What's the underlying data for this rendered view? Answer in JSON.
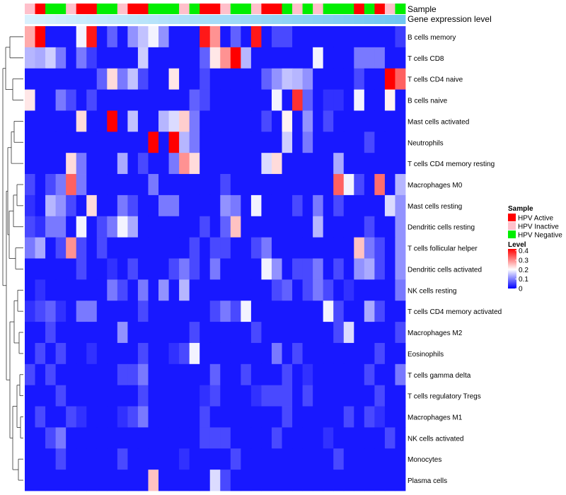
{
  "chart_data": {
    "type": "heatmap",
    "annotation_labels": {
      "sample": "Sample",
      "gene": "Gene expression level"
    },
    "rows": [
      "B cells memory",
      "T cells CD8",
      "T cells CD4 naive",
      "B cells naive",
      "Mast cells activated",
      "Neutrophils",
      "T cells CD4 memory resting",
      "Macrophages M0",
      "Mast cells resting",
      "Dendritic cells resting",
      "T cells follicular helper",
      "Dendritic cells activated",
      "NK cells resting",
      "T cells CD4 memory activated",
      "Macrophages M2",
      "Eosinophils",
      "T cells gamma delta",
      "T cells regulatory  Tregs",
      "Macrophages M1",
      "NK cells activated",
      "Monocytes",
      "Plasma cells"
    ],
    "sample_groups": [
      "HPV Inactive",
      "HPV Active",
      "HPV Negative",
      "HPV Negative",
      "HPV Inactive",
      "HPV Active",
      "HPV Active",
      "HPV Negative",
      "HPV Negative",
      "HPV Inactive",
      "HPV Active",
      "HPV Active",
      "HPV Negative",
      "HPV Negative",
      "HPV Negative",
      "HPV Inactive",
      "HPV Negative",
      "HPV Active",
      "HPV Active",
      "HPV Inactive",
      "HPV Negative",
      "HPV Negative",
      "HPV Inactive",
      "HPV Active",
      "HPV Active",
      "HPV Negative",
      "HPV Inactive",
      "HPV Negative",
      "HPV Inactive",
      "HPV Negative",
      "HPV Negative",
      "HPV Negative",
      "HPV Active",
      "HPV Negative",
      "HPV Active",
      "HPV Inactive",
      "HPV Negative"
    ],
    "gene_expression_level": [
      0.05,
      0.07,
      0.09,
      0.11,
      0.13,
      0.15,
      0.17,
      0.19,
      0.21,
      0.23,
      0.25,
      0.27,
      0.29,
      0.31,
      0.33,
      0.35,
      0.37,
      0.39,
      0.41,
      0.43,
      0.45,
      0.47,
      0.49,
      0.51,
      0.53,
      0.55,
      0.57,
      0.59,
      0.61,
      0.63,
      0.65,
      0.67,
      0.69,
      0.71,
      0.73,
      0.75,
      0.77
    ],
    "values": [
      [
        0.28,
        0.42,
        0.02,
        0.02,
        0.02,
        0.2,
        0.4,
        0.02,
        0.08,
        0.02,
        0.12,
        0.16,
        0.2,
        0.12,
        0.02,
        0.02,
        0.02,
        0.4,
        0.3,
        0.02,
        0.08,
        0.02,
        0.4,
        0.02,
        0.06,
        0.06,
        0.02,
        0.02,
        0.02,
        0.02,
        0.02,
        0.02,
        0.02,
        0.02,
        0.02,
        0.02,
        0.05
      ],
      [
        0.15,
        0.14,
        0.17,
        0.1,
        0.02,
        0.1,
        0.05,
        0.02,
        0.02,
        0.02,
        0.02,
        0.17,
        0.02,
        0.02,
        0.02,
        0.02,
        0.02,
        0.08,
        0.23,
        0.3,
        0.42,
        0.15,
        0.02,
        0.02,
        0.02,
        0.02,
        0.02,
        0.02,
        0.2,
        0.02,
        0.02,
        0.02,
        0.1,
        0.1,
        0.1,
        0.02,
        0.02
      ],
      [
        0.02,
        0.02,
        0.02,
        0.02,
        0.02,
        0.02,
        0.02,
        0.08,
        0.24,
        0.1,
        0.16,
        0.06,
        0.02,
        0.02,
        0.23,
        0.02,
        0.02,
        0.06,
        0.02,
        0.02,
        0.02,
        0.02,
        0.02,
        0.08,
        0.12,
        0.16,
        0.15,
        0.12,
        0.02,
        0.02,
        0.02,
        0.02,
        0.06,
        0.02,
        0.02,
        0.42,
        0.34
      ],
      [
        0.23,
        0.02,
        0.02,
        0.1,
        0.06,
        0.02,
        0.06,
        0.02,
        0.02,
        0.02,
        0.02,
        0.02,
        0.02,
        0.02,
        0.02,
        0.02,
        0.08,
        0.06,
        0.02,
        0.02,
        0.02,
        0.02,
        0.02,
        0.02,
        0.2,
        0.02,
        0.38,
        0.08,
        0.02,
        0.04,
        0.04,
        0.02,
        0.2,
        0.02,
        0.02,
        0.22,
        0.02
      ],
      [
        0.02,
        0.02,
        0.02,
        0.02,
        0.02,
        0.24,
        0.02,
        0.02,
        0.42,
        0.02,
        0.16,
        0.02,
        0.02,
        0.15,
        0.18,
        0.25,
        0.1,
        0.02,
        0.02,
        0.02,
        0.02,
        0.02,
        0.02,
        0.06,
        0.02,
        0.22,
        0.02,
        0.12,
        0.02,
        0.06,
        0.02,
        0.02,
        0.02,
        0.02,
        0.02,
        0.02,
        0.02
      ],
      [
        0.02,
        0.02,
        0.02,
        0.02,
        0.02,
        0.02,
        0.02,
        0.02,
        0.02,
        0.02,
        0.02,
        0.02,
        0.42,
        0.02,
        0.42,
        0.15,
        0.1,
        0.02,
        0.02,
        0.02,
        0.02,
        0.02,
        0.02,
        0.02,
        0.02,
        0.17,
        0.02,
        0.1,
        0.02,
        0.02,
        0.02,
        0.02,
        0.02,
        0.06,
        0.02,
        0.02,
        0.02
      ],
      [
        0.02,
        0.02,
        0.02,
        0.02,
        0.24,
        0.1,
        0.02,
        0.02,
        0.02,
        0.14,
        0.02,
        0.06,
        0.02,
        0.02,
        0.1,
        0.3,
        0.24,
        0.02,
        0.02,
        0.02,
        0.02,
        0.02,
        0.02,
        0.18,
        0.24,
        0.02,
        0.02,
        0.02,
        0.02,
        0.02,
        0.14,
        0.02,
        0.02,
        0.02,
        0.02,
        0.02,
        0.02
      ],
      [
        0.06,
        0.02,
        0.06,
        0.1,
        0.34,
        0.1,
        0.02,
        0.02,
        0.02,
        0.02,
        0.02,
        0.02,
        0.1,
        0.02,
        0.02,
        0.02,
        0.02,
        0.02,
        0.02,
        0.06,
        0.02,
        0.02,
        0.02,
        0.02,
        0.02,
        0.02,
        0.02,
        0.02,
        0.02,
        0.02,
        0.34,
        0.2,
        0.06,
        0.02,
        0.33,
        0.02,
        0.15
      ],
      [
        0.04,
        0.02,
        0.15,
        0.12,
        0.06,
        0.02,
        0.24,
        0.02,
        0.02,
        0.1,
        0.06,
        0.02,
        0.02,
        0.1,
        0.1,
        0.02,
        0.02,
        0.02,
        0.02,
        0.12,
        0.1,
        0.02,
        0.2,
        0.02,
        0.02,
        0.02,
        0.06,
        0.02,
        0.1,
        0.02,
        0.06,
        0.02,
        0.02,
        0.02,
        0.02,
        0.18,
        0.12
      ],
      [
        0.06,
        0.04,
        0.1,
        0.1,
        0.02,
        0.2,
        0.02,
        0.06,
        0.1,
        0.2,
        0.14,
        0.02,
        0.02,
        0.02,
        0.02,
        0.02,
        0.02,
        0.06,
        0.02,
        0.08,
        0.26,
        0.02,
        0.02,
        0.02,
        0.02,
        0.02,
        0.02,
        0.02,
        0.15,
        0.02,
        0.02,
        0.02,
        0.02,
        0.06,
        0.02,
        0.02,
        0.12
      ],
      [
        0.1,
        0.14,
        0.02,
        0.06,
        0.3,
        0.06,
        0.02,
        0.06,
        0.02,
        0.02,
        0.02,
        0.02,
        0.02,
        0.02,
        0.02,
        0.02,
        0.06,
        0.02,
        0.06,
        0.06,
        0.02,
        0.02,
        0.06,
        0.1,
        0.02,
        0.02,
        0.02,
        0.02,
        0.02,
        0.02,
        0.02,
        0.02,
        0.26,
        0.1,
        0.06,
        0.02,
        0.12
      ],
      [
        0.02,
        0.02,
        0.02,
        0.02,
        0.02,
        0.06,
        0.02,
        0.02,
        0.04,
        0.02,
        0.06,
        0.02,
        0.02,
        0.02,
        0.06,
        0.1,
        0.06,
        0.02,
        0.1,
        0.02,
        0.02,
        0.02,
        0.02,
        0.2,
        0.12,
        0.02,
        0.06,
        0.06,
        0.1,
        0.02,
        0.06,
        0.02,
        0.12,
        0.14,
        0.06,
        0.02,
        0.12
      ],
      [
        0.02,
        0.04,
        0.02,
        0.02,
        0.02,
        0.02,
        0.02,
        0.02,
        0.1,
        0.06,
        0.02,
        0.1,
        0.02,
        0.12,
        0.02,
        0.15,
        0.02,
        0.02,
        0.02,
        0.02,
        0.02,
        0.02,
        0.02,
        0.02,
        0.06,
        0.08,
        0.02,
        0.06,
        0.1,
        0.06,
        0.02,
        0.04,
        0.02,
        0.02,
        0.02,
        0.02,
        0.1
      ],
      [
        0.04,
        0.06,
        0.08,
        0.04,
        0.02,
        0.1,
        0.1,
        0.02,
        0.02,
        0.02,
        0.02,
        0.06,
        0.02,
        0.02,
        0.02,
        0.02,
        0.02,
        0.02,
        0.06,
        0.1,
        0.06,
        0.2,
        0.02,
        0.02,
        0.02,
        0.02,
        0.02,
        0.02,
        0.02,
        0.2,
        0.06,
        0.02,
        0.02,
        0.14,
        0.06,
        0.02,
        0.02
      ],
      [
        0.02,
        0.02,
        0.06,
        0.02,
        0.02,
        0.02,
        0.02,
        0.02,
        0.02,
        0.12,
        0.02,
        0.02,
        0.02,
        0.02,
        0.02,
        0.02,
        0.06,
        0.02,
        0.02,
        0.02,
        0.02,
        0.02,
        0.06,
        0.02,
        0.02,
        0.02,
        0.02,
        0.02,
        0.02,
        0.02,
        0.06,
        0.18,
        0.02,
        0.02,
        0.02,
        0.02,
        0.06
      ],
      [
        0.02,
        0.06,
        0.02,
        0.06,
        0.02,
        0.02,
        0.04,
        0.02,
        0.02,
        0.02,
        0.02,
        0.06,
        0.02,
        0.02,
        0.04,
        0.06,
        0.2,
        0.02,
        0.02,
        0.02,
        0.02,
        0.02,
        0.02,
        0.02,
        0.1,
        0.02,
        0.06,
        0.02,
        0.02,
        0.02,
        0.02,
        0.02,
        0.02,
        0.02,
        0.06,
        0.02,
        0.02
      ],
      [
        0.06,
        0.02,
        0.06,
        0.02,
        0.02,
        0.02,
        0.02,
        0.02,
        0.02,
        0.06,
        0.06,
        0.1,
        0.02,
        0.02,
        0.02,
        0.02,
        0.02,
        0.02,
        0.08,
        0.02,
        0.02,
        0.06,
        0.02,
        0.02,
        0.02,
        0.06,
        0.02,
        0.04,
        0.02,
        0.02,
        0.02,
        0.02,
        0.02,
        0.06,
        0.02,
        0.02,
        0.1
      ],
      [
        0.02,
        0.02,
        0.02,
        0.06,
        0.02,
        0.02,
        0.02,
        0.02,
        0.02,
        0.02,
        0.02,
        0.06,
        0.02,
        0.02,
        0.02,
        0.02,
        0.02,
        0.04,
        0.06,
        0.02,
        0.02,
        0.02,
        0.04,
        0.06,
        0.06,
        0.06,
        0.02,
        0.06,
        0.02,
        0.02,
        0.02,
        0.02,
        0.02,
        0.02,
        0.06,
        0.02,
        0.02
      ],
      [
        0.02,
        0.06,
        0.02,
        0.02,
        0.06,
        0.04,
        0.02,
        0.02,
        0.02,
        0.04,
        0.06,
        0.1,
        0.02,
        0.02,
        0.02,
        0.02,
        0.02,
        0.06,
        0.02,
        0.02,
        0.02,
        0.02,
        0.02,
        0.02,
        0.02,
        0.06,
        0.02,
        0.02,
        0.02,
        0.02,
        0.02,
        0.06,
        0.02,
        0.06,
        0.04,
        0.02,
        0.02
      ],
      [
        0.02,
        0.02,
        0.06,
        0.1,
        0.02,
        0.02,
        0.02,
        0.02,
        0.02,
        0.02,
        0.02,
        0.02,
        0.02,
        0.02,
        0.02,
        0.02,
        0.02,
        0.06,
        0.06,
        0.06,
        0.02,
        0.02,
        0.02,
        0.02,
        0.06,
        0.02,
        0.02,
        0.02,
        0.02,
        0.04,
        0.02,
        0.02,
        0.02,
        0.02,
        0.02,
        0.06,
        0.02
      ],
      [
        0.02,
        0.02,
        0.02,
        0.06,
        0.02,
        0.02,
        0.02,
        0.02,
        0.02,
        0.06,
        0.02,
        0.02,
        0.02,
        0.02,
        0.02,
        0.04,
        0.02,
        0.02,
        0.02,
        0.02,
        0.06,
        0.02,
        0.02,
        0.02,
        0.02,
        0.02,
        0.02,
        0.02,
        0.02,
        0.02,
        0.06,
        0.02,
        0.02,
        0.02,
        0.02,
        0.02,
        0.02
      ],
      [
        0.02,
        0.02,
        0.02,
        0.02,
        0.02,
        0.02,
        0.02,
        0.02,
        0.02,
        0.02,
        0.02,
        0.02,
        0.26,
        0.02,
        0.02,
        0.02,
        0.02,
        0.02,
        0.18,
        0.06,
        0.02,
        0.02,
        0.02,
        0.02,
        0.02,
        0.02,
        0.02,
        0.02,
        0.02,
        0.02,
        0.02,
        0.02,
        0.02,
        0.02,
        0.02,
        0.02,
        0.02
      ]
    ],
    "legend": {
      "sample_title": "Sample",
      "sample_items": [
        {
          "label": "HPV Active",
          "color": "#ff0000"
        },
        {
          "label": "HPV Inactive",
          "color": "#ffc0cb"
        },
        {
          "label": "HPV Negative",
          "color": "#00ee00"
        }
      ],
      "level_title": "Level",
      "level_ticks": [
        "0.4",
        "0.3",
        "0.2",
        "0.1",
        "0"
      ],
      "level_tick_values": [
        0.4,
        0.3,
        0.2,
        0.1,
        0
      ],
      "range": [
        0,
        0.42
      ],
      "colors": {
        "low": "#0000ff",
        "mid": "#ffffff",
        "high": "#ff0000"
      },
      "placement": "right"
    },
    "gene_colors": {
      "low": "#e0f4ff",
      "high": "#4fb8ee"
    }
  }
}
